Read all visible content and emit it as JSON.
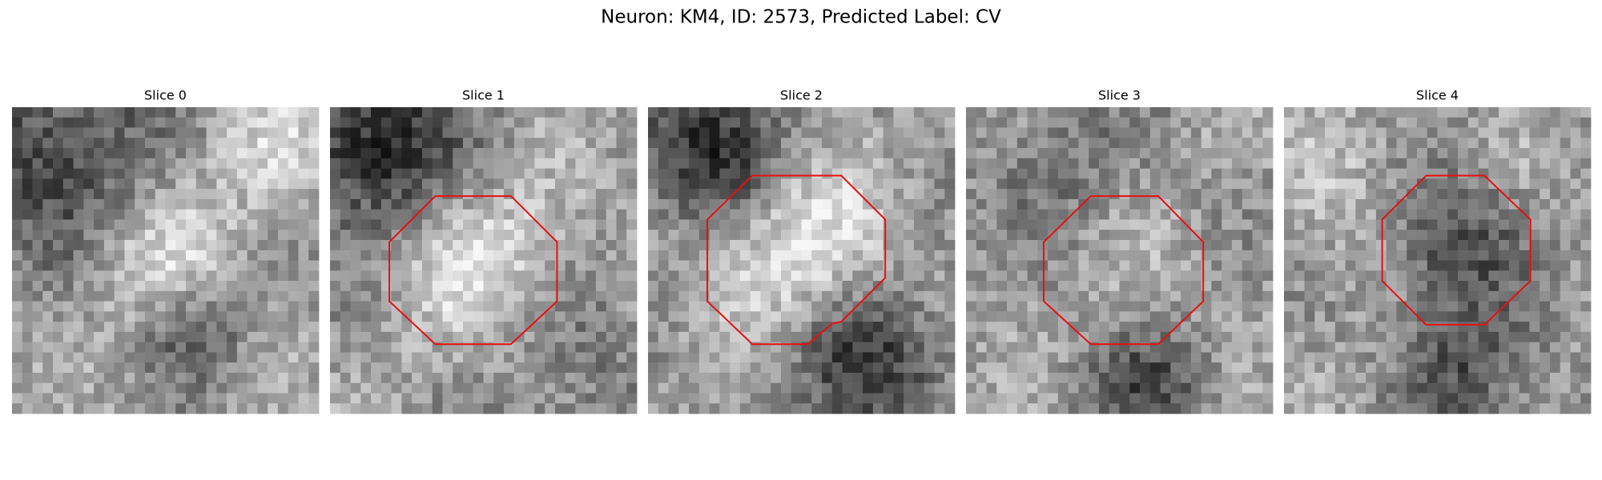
{
  "header": {
    "title": "Neuron: KM4, ID: 2573, Predicted Label: CV"
  },
  "panels": [
    {
      "title": "Slice 0"
    },
    {
      "title": "Slice 1"
    },
    {
      "title": "Slice 2"
    },
    {
      "title": "Slice 3"
    },
    {
      "title": "Slice 4"
    }
  ]
}
